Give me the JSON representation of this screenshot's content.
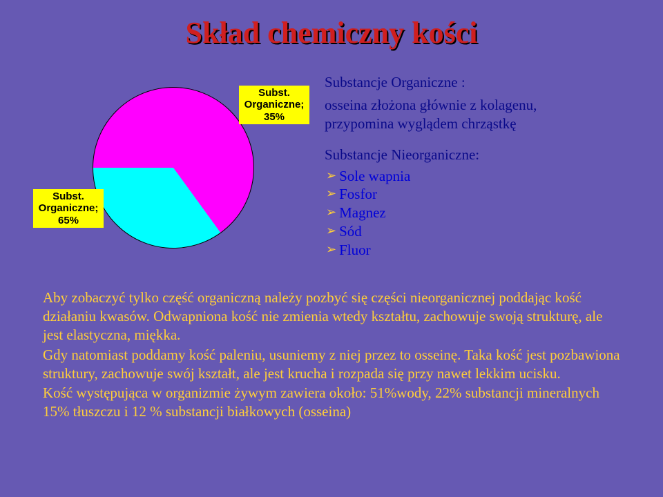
{
  "title": "Skład chemiczny kości",
  "pie": {
    "type": "pie",
    "background": "#6659b3",
    "label_bg": "#ffff00",
    "label_color": "#000000",
    "label_fontsize": 15,
    "slices": [
      {
        "name": "Subst. Organiczne",
        "value": 65,
        "label": "Subst.\nOrganiczne;\n65%",
        "color": "#ff00ff"
      },
      {
        "name": "Subst. Organiczne",
        "value": 35,
        "label": "Subst.\nOrganiczne;\n35%",
        "color": "#00ffff"
      }
    ],
    "border_color": "#000000",
    "start_angle_deg": -90
  },
  "intro": {
    "heading": "Substancje Organiczne :",
    "lines": [
      "osseina złożona głównie z kolagenu,",
      "przypomina wyglądem chrząstkę"
    ],
    "sub_heading": "Substancje Nieorganiczne:",
    "bullets": [
      "Sole wapnia",
      "Fosfor",
      "Magnez",
      "Sód",
      "Fluor"
    ],
    "heading_color": "#0a0a8a",
    "bullet_text_color": "#0000d8",
    "bullet_marker_color": "#ffce3a"
  },
  "body": {
    "color": "#ffce3a",
    "fontsize": 21,
    "paragraphs": [
      "Aby zobaczyć tylko część organiczną należy pozbyć się części nieorganicznej poddając kość działaniu kwasów. Odwapniona kość nie zmienia wtedy kształtu, zachowuje swoją strukturę, ale jest elastyczna, miękka.",
      "Gdy natomiast poddamy kość paleniu, usuniemy z niej przez to osseinę. Taka kość jest pozbawiona struktury, zachowuje swój kształt, ale jest krucha i rozpada się przy nawet lekkim ucisku.",
      "Kość  występująca w organizmie żywym zawiera około: 51%wody, 22% substancji mineralnych 15% tłuszczu i 12 % substancji białkowych (osseina)"
    ]
  },
  "colors": {
    "slide_bg": "#6659b3",
    "title_color": "#d01f1f",
    "title_shadow": "#000000"
  }
}
